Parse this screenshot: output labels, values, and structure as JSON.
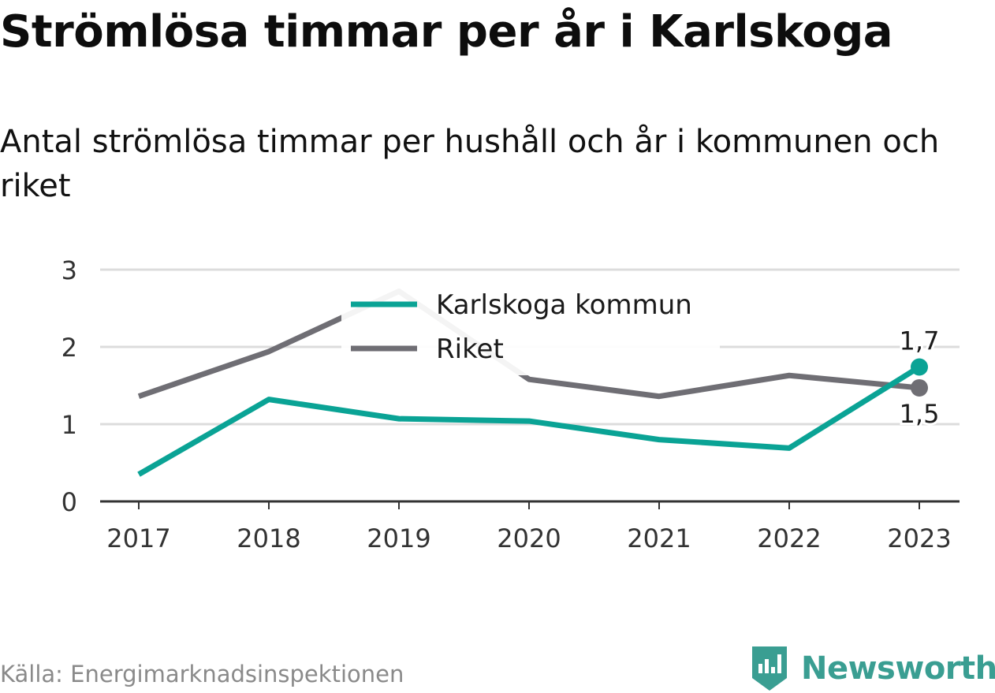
{
  "header": {
    "title": "Strömlösa timmar per år i Karlskoga",
    "subtitle": "Antal strömlösa timmar per hushåll och år i kommunen och riket"
  },
  "footer": {
    "source": "Källa: Energimarknadsinspektionen",
    "brand": "Newsworthy",
    "brand_icon": "bar-chart-bubble-icon",
    "brand_color": "#3a9e92"
  },
  "chart_data": {
    "type": "line",
    "x": [
      "2017",
      "2018",
      "2019",
      "2020",
      "2021",
      "2022",
      "2023"
    ],
    "yticks": [
      0,
      1,
      2,
      3
    ],
    "ylim": [
      0,
      3
    ],
    "grid": true,
    "legend_position": "top-center",
    "series": [
      {
        "name": "Karlskoga kommun",
        "color": "#0aa395",
        "values": [
          0.35,
          1.32,
          1.07,
          1.04,
          0.8,
          0.69,
          1.74
        ],
        "end_label": "1,7"
      },
      {
        "name": "Riket",
        "color": "#6f6e74",
        "values": [
          1.36,
          1.94,
          2.72,
          1.58,
          1.36,
          1.63,
          1.47
        ],
        "end_label": "1,5"
      }
    ]
  }
}
